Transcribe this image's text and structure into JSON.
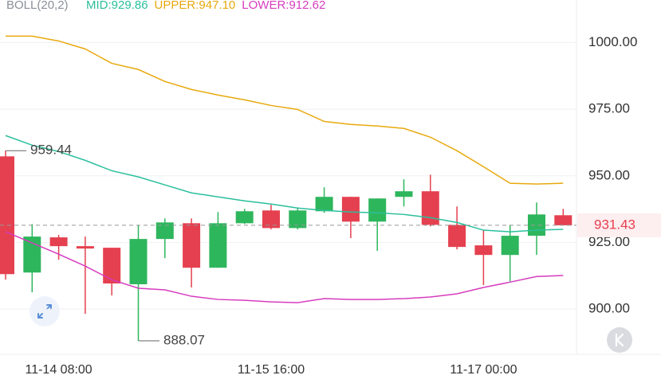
{
  "chart_data": {
    "type": "candlestick",
    "indicator": "BOLL(20,2)",
    "categories": [
      null,
      null,
      "11-14 08:00",
      null,
      null,
      null,
      null,
      null,
      null,
      null,
      "11-15 16:00",
      null,
      null,
      null,
      null,
      null,
      null,
      null,
      "11-17 00:00",
      null,
      null,
      null
    ],
    "open": [
      957.3,
      913.7,
      926.9,
      923.6,
      923.0,
      909.3,
      926.3,
      932.2,
      915.5,
      932.2,
      937.0,
      930.4,
      936.7,
      942.1,
      932.8,
      942.1,
      944.2,
      931.6,
      923.9,
      920.3,
      927.5,
      935.2
    ],
    "high": [
      959.44,
      931.9,
      927.8,
      927.2,
      923.0,
      931.6,
      934.0,
      934.0,
      936.4,
      937.6,
      939.1,
      937.9,
      945.7,
      942.1,
      941.5,
      948.7,
      950.4,
      938.5,
      929.6,
      931.6,
      940.0,
      937.6
    ],
    "low": [
      911.0,
      906.3,
      918.5,
      898.2,
      905.1,
      888.07,
      919.1,
      908.1,
      915.5,
      931.9,
      929.9,
      929.9,
      936.1,
      926.6,
      921.8,
      938.5,
      931.0,
      922.4,
      909.0,
      910.4,
      920.3,
      931.4
    ],
    "close": [
      913.1,
      927.2,
      923.6,
      922.7,
      909.6,
      926.3,
      932.5,
      915.5,
      932.2,
      936.7,
      930.4,
      937.0,
      942.1,
      932.8,
      941.5,
      944.2,
      931.6,
      923.3,
      920.3,
      927.5,
      935.5,
      931.43
    ],
    "up_color": "#2eb65c",
    "down_color": "#e5404f",
    "series": [
      {
        "name": "MID:929.86",
        "color": "#2bbf9c",
        "values": [
          965.1,
          961.5,
          959.1,
          955.8,
          951.9,
          949.6,
          946.6,
          943.6,
          942.1,
          940.6,
          939.4,
          937.9,
          937.0,
          936.4,
          936.1,
          935.5,
          934.3,
          932.5,
          929.6,
          929.0,
          929.6,
          929.9
        ]
      },
      {
        "name": "UPPER:947.10",
        "color": "#e8a90e",
        "values": [
          1002.4,
          1002.4,
          1000.6,
          997.6,
          992.2,
          989.9,
          985.4,
          982.4,
          980.3,
          978.5,
          976.4,
          974.9,
          970.4,
          969.3,
          968.7,
          967.8,
          964.5,
          959.4,
          953.4,
          947.2,
          946.9,
          947.2
        ]
      },
      {
        "name": "LOWER:912.62",
        "color": "#d63cbf",
        "values": [
          929.0,
          924.8,
          920.6,
          916.1,
          911.0,
          907.8,
          907.2,
          904.8,
          903.6,
          903.3,
          902.7,
          902.4,
          903.9,
          903.6,
          903.6,
          903.9,
          904.5,
          905.7,
          908.1,
          910.1,
          912.2,
          912.6
        ]
      }
    ],
    "ylim": [
      883,
      1010
    ],
    "yticks": [
      {
        "value": 900,
        "label": "900.00"
      },
      {
        "value": 925,
        "label": "925.00"
      },
      {
        "value": 950,
        "label": "950.00"
      },
      {
        "value": 975,
        "label": "975.00"
      },
      {
        "value": 1000,
        "label": "1000.00"
      }
    ],
    "grid": true
  }
}
